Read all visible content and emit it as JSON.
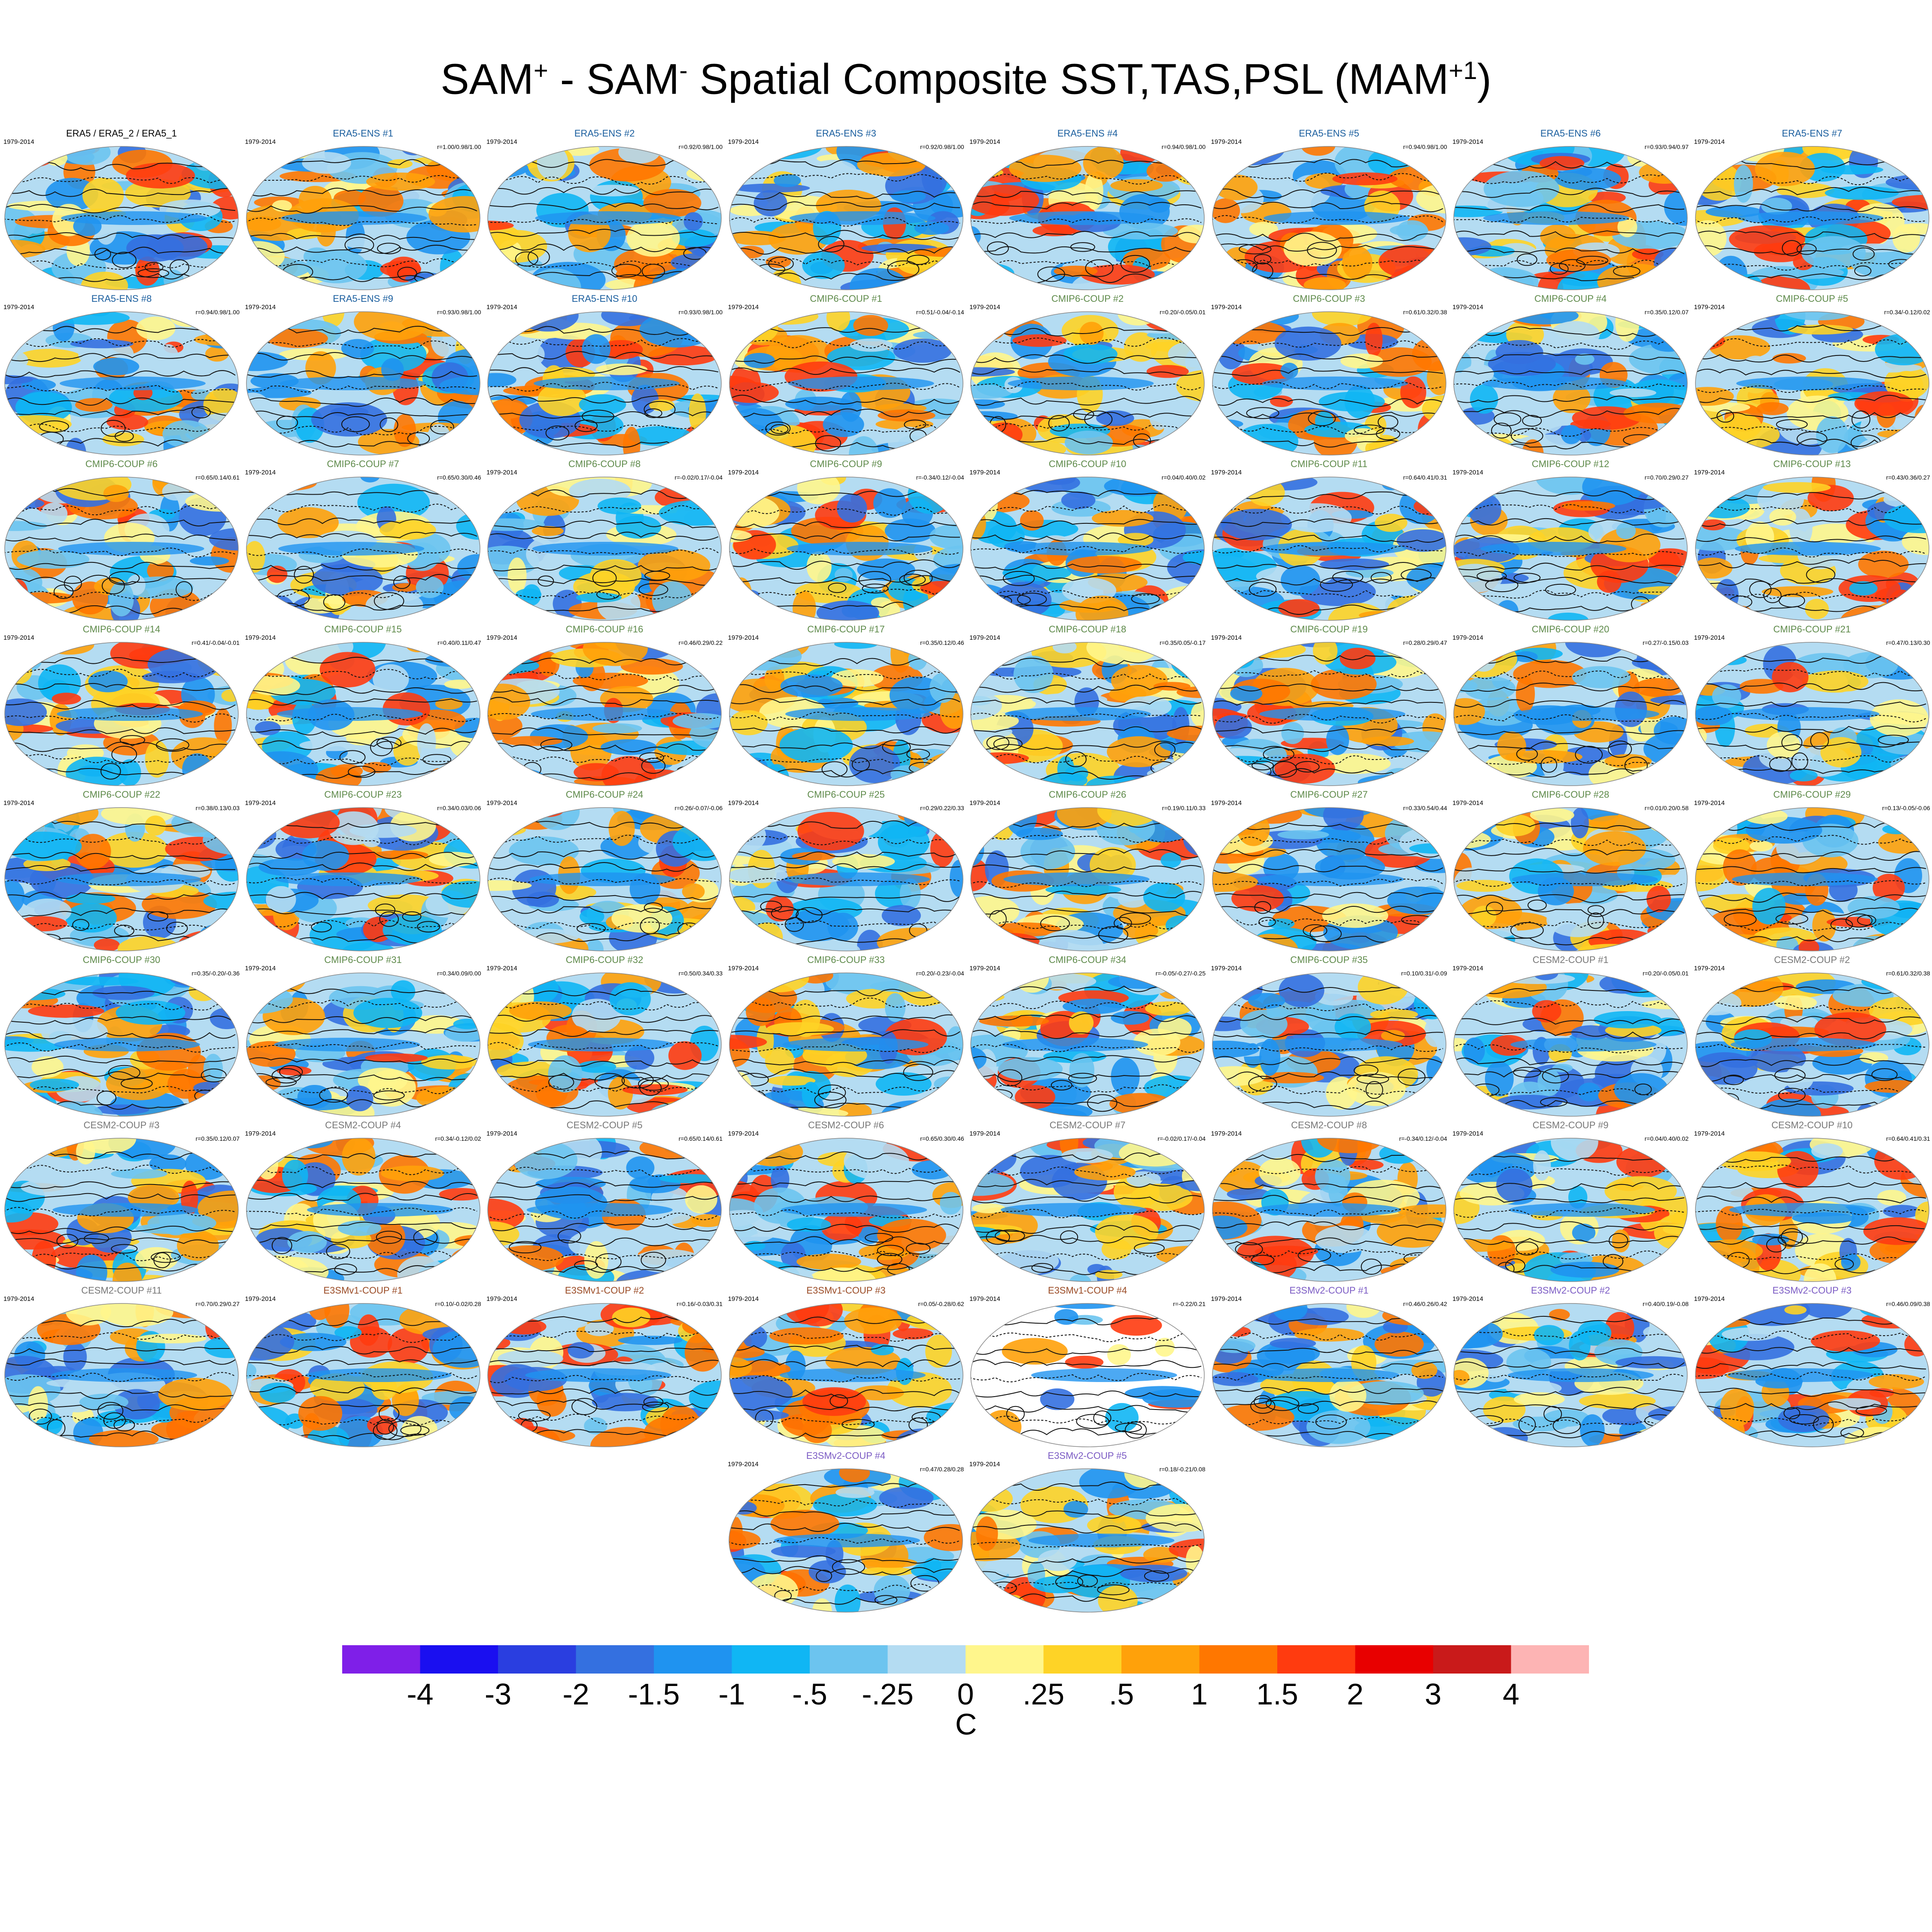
{
  "title": {
    "main": "SAM",
    "sup1": "+",
    "mid": " - SAM",
    "sup2": "-",
    "rest": " Spatial Composite SST,TAS,PSL (MAM",
    "sup3": "+1",
    "end": ")"
  },
  "colors": {
    "era5": "#1a5e9e",
    "cmip6": "#5e8a4a",
    "cesm2": "#777777",
    "e3smv1": "#9a4a24",
    "e3smv2": "#7b5bc4",
    "obs": "#000000"
  },
  "panels": [
    {
      "title": "ERA5 / ERA5_2 / ERA5_1",
      "years": "1979-2014",
      "corr": "",
      "group": "obs"
    },
    {
      "title": "ERA5-ENS   #1",
      "years": "1979-2014",
      "corr": "r=1.00/0.98/1.00",
      "group": "era5"
    },
    {
      "title": "ERA5-ENS   #2",
      "years": "1979-2014",
      "corr": "r=0.92/0.98/1.00",
      "group": "era5"
    },
    {
      "title": "ERA5-ENS   #3",
      "years": "1979-2014",
      "corr": "r=0.92/0.98/1.00",
      "group": "era5"
    },
    {
      "title": "ERA5-ENS   #4",
      "years": "1979-2014",
      "corr": "r=0.94/0.98/1.00",
      "group": "era5"
    },
    {
      "title": "ERA5-ENS   #5",
      "years": "1979-2014",
      "corr": "r=0.94/0.98/1.00",
      "group": "era5"
    },
    {
      "title": "ERA5-ENS   #6",
      "years": "1979-2014",
      "corr": "r=0.93/0.94/0.97",
      "group": "era5"
    },
    {
      "title": "ERA5-ENS   #7",
      "years": "1979-2014",
      "corr": "",
      "group": "era5"
    },
    {
      "title": "ERA5-ENS   #8",
      "years": "1979-2014",
      "corr": "r=0.94/0.98/1.00",
      "group": "era5"
    },
    {
      "title": "ERA5-ENS   #9",
      "years": "1979-2014",
      "corr": "r=0.93/0.98/1.00",
      "group": "era5"
    },
    {
      "title": "ERA5-ENS   #10",
      "years": "1979-2014",
      "corr": "r=0.93/0.98/1.00",
      "group": "era5"
    },
    {
      "title": "CMIP6-COUP   #1",
      "years": "1979-2014",
      "corr": "r=0.51/-0.04/-0.14",
      "group": "cmip6"
    },
    {
      "title": "CMIP6-COUP   #2",
      "years": "1979-2014",
      "corr": "r=0.20/-0.05/0.01",
      "group": "cmip6"
    },
    {
      "title": "CMIP6-COUP   #3",
      "years": "1979-2014",
      "corr": "r=0.61/0.32/0.38",
      "group": "cmip6"
    },
    {
      "title": "CMIP6-COUP   #4",
      "years": "1979-2014",
      "corr": "r=0.35/0.12/0.07",
      "group": "cmip6"
    },
    {
      "title": "CMIP6-COUP   #5",
      "years": "1979-2014",
      "corr": "r=0.34/-0.12/0.02",
      "group": "cmip6"
    },
    {
      "title": "CMIP6-COUP   #6",
      "years": "",
      "corr": "r=0.65/0.14/0.61",
      "group": "cmip6"
    },
    {
      "title": "CMIP6-COUP   #7",
      "years": "1979-2014",
      "corr": "r=0.65/0.30/0.46",
      "group": "cmip6"
    },
    {
      "title": "CMIP6-COUP   #8",
      "years": "1979-2014",
      "corr": "r=-0.02/0.17/-0.04",
      "group": "cmip6"
    },
    {
      "title": "CMIP6-COUP   #9",
      "years": "1979-2014",
      "corr": "r=-0.34/0.12/-0.04",
      "group": "cmip6"
    },
    {
      "title": "CMIP6-COUP   #10",
      "years": "1979-2014",
      "corr": "r=0.04/0.40/0.02",
      "group": "cmip6"
    },
    {
      "title": "CMIP6-COUP   #11",
      "years": "1979-2014",
      "corr": "r=0.64/0.41/0.31",
      "group": "cmip6"
    },
    {
      "title": "CMIP6-COUP   #12",
      "years": "1979-2014",
      "corr": "r=0.70/0.29/0.27",
      "group": "cmip6"
    },
    {
      "title": "CMIP6-COUP   #13",
      "years": "1979-2014",
      "corr": "r=0.43/0.36/0.27",
      "group": "cmip6"
    },
    {
      "title": "CMIP6-COUP   #14",
      "years": "1979-2014",
      "corr": "r=0.41/-0.04/-0.01",
      "group": "cmip6"
    },
    {
      "title": "CMIP6-COUP   #15",
      "years": "1979-2014",
      "corr": "r=0.40/0.11/0.47",
      "group": "cmip6"
    },
    {
      "title": "CMIP6-COUP   #16",
      "years": "1979-2014",
      "corr": "r=0.46/0.29/0.22",
      "group": "cmip6"
    },
    {
      "title": "CMIP6-COUP   #17",
      "years": "1979-2014",
      "corr": "r=0.35/0.12/0.46",
      "group": "cmip6"
    },
    {
      "title": "CMIP6-COUP   #18",
      "years": "1979-2014",
      "corr": "r=0.35/0.05/-0.17",
      "group": "cmip6"
    },
    {
      "title": "CMIP6-COUP   #19",
      "years": "1979-2014",
      "corr": "r=0.28/0.29/0.47",
      "group": "cmip6"
    },
    {
      "title": "CMIP6-COUP   #20",
      "years": "1979-2014",
      "corr": "r=0.27/-0.15/0.03",
      "group": "cmip6"
    },
    {
      "title": "CMIP6-COUP   #21",
      "years": "1979-2014",
      "corr": "r=0.47/0.13/0.30",
      "group": "cmip6"
    },
    {
      "title": "CMIP6-COUP   #22",
      "years": "1979-2014",
      "corr": "r=0.38/0.13/0.03",
      "group": "cmip6"
    },
    {
      "title": "CMIP6-COUP   #23",
      "years": "1979-2014",
      "corr": "r=0.34/0.03/0.06",
      "group": "cmip6"
    },
    {
      "title": "CMIP6-COUP   #24",
      "years": "1979-2014",
      "corr": "r=0.26/-0.07/-0.06",
      "group": "cmip6"
    },
    {
      "title": "CMIP6-COUP   #25",
      "years": "1979-2014",
      "corr": "r=0.29/0.22/0.33",
      "group": "cmip6"
    },
    {
      "title": "CMIP6-COUP   #26",
      "years": "1979-2014",
      "corr": "r=0.19/0.11/0.33",
      "group": "cmip6"
    },
    {
      "title": "CMIP6-COUP   #27",
      "years": "1979-2014",
      "corr": "r=0.33/0.54/0.44",
      "group": "cmip6"
    },
    {
      "title": "CMIP6-COUP   #28",
      "years": "1979-2014",
      "corr": "r=0.01/0.20/0.58",
      "group": "cmip6"
    },
    {
      "title": "CMIP6-COUP   #29",
      "years": "1979-2014",
      "corr": "r=0.13/-0.05/-0.06",
      "group": "cmip6"
    },
    {
      "title": "CMIP6-COUP   #30",
      "years": "",
      "corr": "r=0.35/-0.20/-0.36",
      "group": "cmip6"
    },
    {
      "title": "CMIP6-COUP   #31",
      "years": "1979-2014",
      "corr": "r=0.34/0.09/0.00",
      "group": "cmip6"
    },
    {
      "title": "CMIP6-COUP   #32",
      "years": "1979-2014",
      "corr": "r=0.50/0.34/0.33",
      "group": "cmip6"
    },
    {
      "title": "CMIP6-COUP   #33",
      "years": "1979-2014",
      "corr": "r=0.20/-0.23/-0.04",
      "group": "cmip6"
    },
    {
      "title": "CMIP6-COUP   #34",
      "years": "1979-2014",
      "corr": "r=-0.05/-0.27/-0.25",
      "group": "cmip6"
    },
    {
      "title": "CMIP6-COUP   #35",
      "years": "1979-2014",
      "corr": "r=0.10/0.31/-0.09",
      "group": "cmip6"
    },
    {
      "title": "CESM2-COUP   #1",
      "years": "1979-2014",
      "corr": "r=0.20/-0.05/0.01",
      "group": "cesm2"
    },
    {
      "title": "CESM2-COUP   #2",
      "years": "1979-2014",
      "corr": "r=0.61/0.32/0.38",
      "group": "cesm2"
    },
    {
      "title": "CESM2-COUP   #3",
      "years": "",
      "corr": "r=0.35/0.12/0.07",
      "group": "cesm2"
    },
    {
      "title": "CESM2-COUP   #4",
      "years": "1979-2014",
      "corr": "r=0.34/-0.12/0.02",
      "group": "cesm2"
    },
    {
      "title": "CESM2-COUP   #5",
      "years": "1979-2014",
      "corr": "r=0.65/0.14/0.61",
      "group": "cesm2"
    },
    {
      "title": "CESM2-COUP   #6",
      "years": "1979-2014",
      "corr": "r=0.65/0.30/0.46",
      "group": "cesm2"
    },
    {
      "title": "CESM2-COUP   #7",
      "years": "1979-2014",
      "corr": "r=-0.02/0.17/-0.04",
      "group": "cesm2"
    },
    {
      "title": "CESM2-COUP   #8",
      "years": "1979-2014",
      "corr": "r=-0.34/0.12/-0.04",
      "group": "cesm2"
    },
    {
      "title": "CESM2-COUP   #9",
      "years": "1979-2014",
      "corr": "r=0.04/0.40/0.02",
      "group": "cesm2"
    },
    {
      "title": "CESM2-COUP   #10",
      "years": "1979-2014",
      "corr": "r=0.64/0.41/0.31",
      "group": "cesm2"
    },
    {
      "title": "CESM2-COUP   #11",
      "years": "1979-2014",
      "corr": "r=0.70/0.29/0.27",
      "group": "cesm2"
    },
    {
      "title": "E3SMv1-COUP #1",
      "years": "1979-2014",
      "corr": "r=0.10/-0.02/0.28",
      "group": "e3smv1"
    },
    {
      "title": "E3SMv1-COUP #2",
      "years": "1979-2014",
      "corr": "r=0.16/-0.03/0.31",
      "group": "e3smv1"
    },
    {
      "title": "E3SMv1-COUP #3",
      "years": "1979-2014",
      "corr": "r=0.05/-0.28/0.62",
      "group": "e3smv1"
    },
    {
      "title": "E3SMv1-COUP #4",
      "years": "1979-2014",
      "corr": "r=-0.22/0.21",
      "group": "e3smv1"
    },
    {
      "title": "E3SMv2-COUP #1",
      "years": "1979-2014",
      "corr": "r=0.46/0.26/0.42",
      "group": "e3smv2"
    },
    {
      "title": "E3SMv2-COUP #2",
      "years": "1979-2014",
      "corr": "r=0.40/0.19/-0.08",
      "group": "e3smv2"
    },
    {
      "title": "E3SMv2-COUP #3",
      "years": "1979-2014",
      "corr": "r=0.46/0.09/0.38",
      "group": "e3smv2"
    },
    {
      "title": "E3SMv2-COUP #4",
      "years": "1979-2014",
      "corr": "r=0.47/0.28/0.28",
      "group": "e3smv2"
    },
    {
      "title": "E3SMv2-COUP #5",
      "years": "1979-2014",
      "corr": "r=0.18/-0.21/0.08",
      "group": "e3smv2"
    }
  ],
  "colorbar": {
    "colors": [
      "#7f1fe8",
      "#1a0ff0",
      "#2a3ee0",
      "#3470e0",
      "#1f93f0",
      "#10b6f4",
      "#6cc4ef",
      "#b4dcf2",
      "#fff68c",
      "#fed326",
      "#ffa10a",
      "#ff7700",
      "#ff3b0f",
      "#e80000",
      "#c91a1a",
      "#fdb4b4"
    ],
    "ticks": [
      "-4",
      "-3",
      "-2",
      "-1.5",
      "-1",
      "-.5",
      "-.25",
      "0",
      ".25",
      ".5",
      "1",
      "1.5",
      "2",
      "3",
      "4"
    ],
    "units": "C"
  }
}
